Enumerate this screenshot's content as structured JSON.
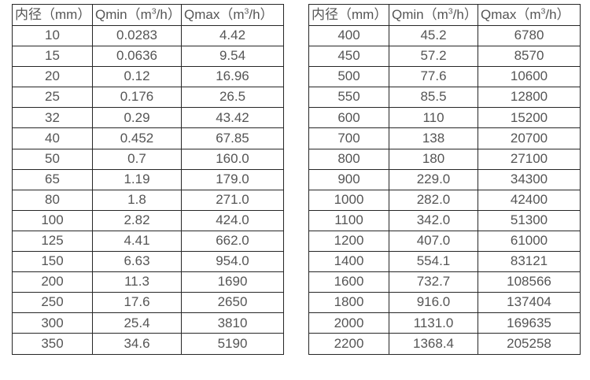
{
  "page": {
    "background": "#ffffff",
    "border_color": "#262626",
    "text_color": "#555555"
  },
  "tables": [
    {
      "name": "small-diameter-flow-table",
      "headers": [
        {
          "pre": "内径（mm）",
          "sup": "",
          "post": ""
        },
        {
          "pre": "Qmin（m",
          "sup": "3",
          "post": "/h）"
        },
        {
          "pre": "Qmax（m",
          "sup": "3",
          "post": "/h）"
        }
      ],
      "rows": [
        [
          "10",
          "0.0283",
          "4.42"
        ],
        [
          "15",
          "0.0636",
          "9.54"
        ],
        [
          "20",
          "0.12",
          "16.96"
        ],
        [
          "25",
          "0.176",
          "26.5"
        ],
        [
          "32",
          "0.29",
          "43.42"
        ],
        [
          "40",
          "0.452",
          "67.85"
        ],
        [
          "50",
          "0.7",
          "160.0"
        ],
        [
          "65",
          "1.19",
          "179.0"
        ],
        [
          "80",
          "1.8",
          "271.0"
        ],
        [
          "100",
          "2.82",
          "424.0"
        ],
        [
          "125",
          "4.41",
          "662.0"
        ],
        [
          "150",
          "6.63",
          "954.0"
        ],
        [
          "200",
          "11.3",
          "1690"
        ],
        [
          "250",
          "17.6",
          "2650"
        ],
        [
          "300",
          "25.4",
          "3810"
        ],
        [
          "350",
          "34.6",
          "5190"
        ]
      ]
    },
    {
      "name": "large-diameter-flow-table",
      "headers": [
        {
          "pre": "内径（mm）",
          "sup": "",
          "post": ""
        },
        {
          "pre": "Qmin（m",
          "sup": "3",
          "post": "/h）"
        },
        {
          "pre": "Qmax（m",
          "sup": "3",
          "post": "/h）"
        }
      ],
      "rows": [
        [
          "400",
          "45.2",
          "6780"
        ],
        [
          "450",
          "57.2",
          "8570"
        ],
        [
          "500",
          "77.6",
          "10600"
        ],
        [
          "550",
          "85.5",
          "12800"
        ],
        [
          "600",
          "110",
          "15200"
        ],
        [
          "700",
          "138",
          "20700"
        ],
        [
          "800",
          "180",
          "27100"
        ],
        [
          "900",
          "229.0",
          "34300"
        ],
        [
          "1000",
          "282.0",
          "42400"
        ],
        [
          "1100",
          "342.0",
          "51300"
        ],
        [
          "1200",
          "407.0",
          "61000"
        ],
        [
          "1400",
          "554.1",
          "83121"
        ],
        [
          "1600",
          "732.7",
          "108566"
        ],
        [
          "1800",
          "916.0",
          "137404"
        ],
        [
          "2000",
          "1131.0",
          "169635"
        ],
        [
          "2200",
          "1368.4",
          "205258"
        ]
      ]
    }
  ]
}
